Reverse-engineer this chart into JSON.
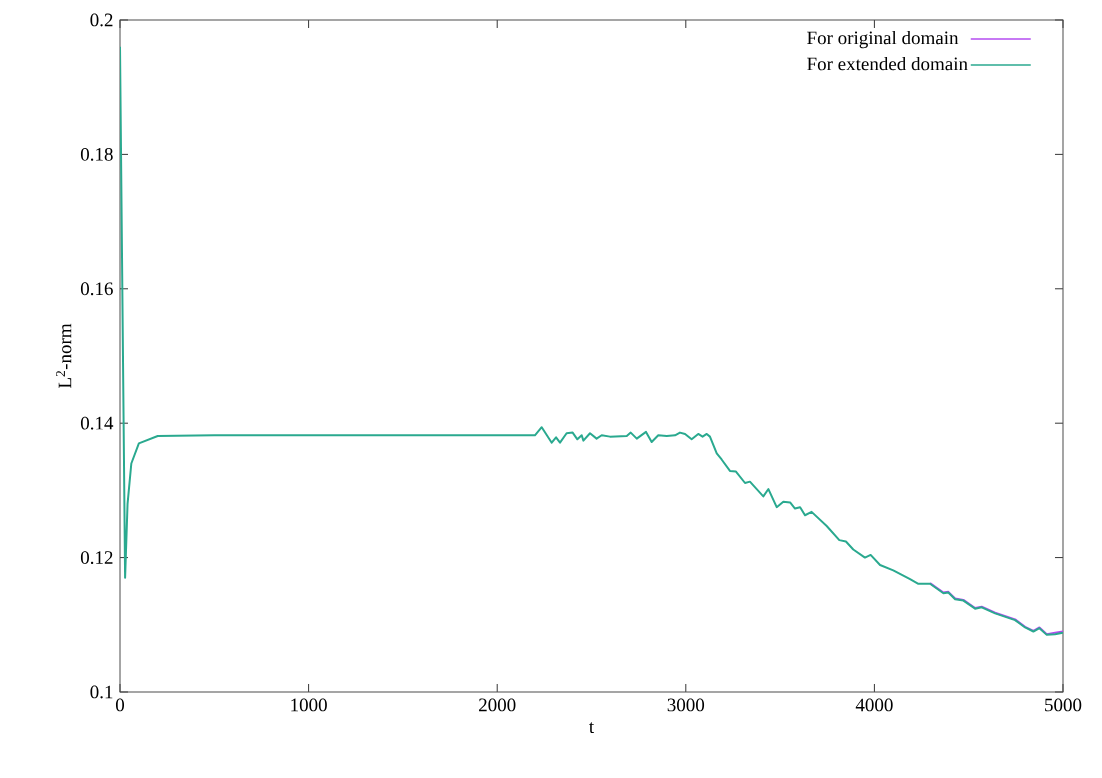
{
  "chart_data": {
    "type": "line",
    "xlabel": "t",
    "ylabel": "L$^{2}$-norm",
    "xlim": [
      0,
      5000
    ],
    "ylim": [
      0.1,
      0.2
    ],
    "xticks": [
      0,
      1000,
      2000,
      3000,
      4000,
      5000
    ],
    "yticks": [
      0.1,
      0.12,
      0.14,
      0.16,
      0.18,
      0.2
    ],
    "legend": "top right",
    "grid": false,
    "x": [
      0,
      27,
      40,
      60,
      100,
      200,
      500,
      1000,
      2200,
      2236,
      2289,
      2312,
      2333,
      2368,
      2400,
      2425,
      2448,
      2457,
      2492,
      2527,
      2554,
      2598,
      2687,
      2708,
      2740,
      2789,
      2819,
      2854,
      2899,
      2943,
      2969,
      2996,
      3031,
      3066,
      3089,
      3111,
      3128,
      3164,
      3190,
      3234,
      3266,
      3314,
      3340,
      3411,
      3438,
      3482,
      3517,
      3553,
      3579,
      3606,
      3632,
      3667,
      3747,
      3814,
      3849,
      3888,
      3950,
      3980,
      4030,
      4100,
      4189,
      4233,
      4295,
      4366,
      4392,
      4428,
      4472,
      4534,
      4569,
      4640,
      4746,
      4799,
      4843,
      4875,
      4914,
      4958,
      5000
    ],
    "series": [
      {
        "name": "For original domain",
        "color": "#b44cf0",
        "values": [
          null,
          null,
          null,
          null,
          null,
          null,
          null,
          null,
          null,
          null,
          null,
          null,
          null,
          null,
          null,
          null,
          null,
          null,
          null,
          null,
          null,
          null,
          null,
          null,
          null,
          null,
          null,
          null,
          null,
          null,
          null,
          null,
          null,
          null,
          null,
          null,
          null,
          null,
          null,
          null,
          null,
          null,
          null,
          null,
          null,
          null,
          null,
          null,
          null,
          null,
          null,
          null,
          null,
          null,
          null,
          null,
          null,
          null,
          null,
          null,
          null,
          null,
          0.1162,
          0.1148,
          0.1149,
          0.1139,
          0.1137,
          0.1125,
          0.1127,
          0.1118,
          0.1108,
          0.1097,
          0.1091,
          0.1096,
          0.1086,
          0.1088,
          0.109
        ]
      },
      {
        "name": "For extended domain",
        "color": "#2aa98f",
        "values": [
          0.196,
          0.117,
          0.128,
          0.134,
          0.137,
          0.1381,
          0.1382,
          0.1382,
          0.1382,
          0.1394,
          0.1371,
          0.1379,
          0.1371,
          0.1385,
          0.1386,
          0.1376,
          0.1382,
          0.1374,
          0.1385,
          0.1377,
          0.1382,
          0.138,
          0.1381,
          0.1386,
          0.1377,
          0.1387,
          0.1372,
          0.1382,
          0.1381,
          0.1382,
          0.1386,
          0.1384,
          0.1376,
          0.1384,
          0.138,
          0.1384,
          0.138,
          0.1355,
          0.1346,
          0.1329,
          0.1328,
          0.1311,
          0.1313,
          0.1291,
          0.1302,
          0.1275,
          0.1283,
          0.1282,
          0.1273,
          0.1275,
          0.1263,
          0.1268,
          0.1247,
          0.1226,
          0.1224,
          0.1212,
          0.12,
          0.1204,
          0.1189,
          0.1181,
          0.1168,
          0.1161,
          0.1161,
          0.1147,
          0.1148,
          0.1138,
          0.1136,
          0.1124,
          0.1126,
          0.1117,
          0.1107,
          0.1096,
          0.109,
          0.1095,
          0.1085,
          0.1086,
          0.1088
        ]
      }
    ]
  }
}
